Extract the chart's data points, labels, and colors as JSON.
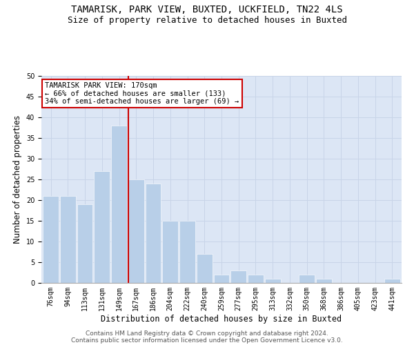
{
  "title1": "TAMARISK, PARK VIEW, BUXTED, UCKFIELD, TN22 4LS",
  "title2": "Size of property relative to detached houses in Buxted",
  "xlabel": "Distribution of detached houses by size in Buxted",
  "ylabel": "Number of detached properties",
  "categories": [
    "76sqm",
    "94sqm",
    "113sqm",
    "131sqm",
    "149sqm",
    "167sqm",
    "186sqm",
    "204sqm",
    "222sqm",
    "240sqm",
    "259sqm",
    "277sqm",
    "295sqm",
    "313sqm",
    "332sqm",
    "350sqm",
    "368sqm",
    "386sqm",
    "405sqm",
    "423sqm",
    "441sqm"
  ],
  "values": [
    21,
    21,
    19,
    27,
    38,
    25,
    24,
    15,
    15,
    7,
    2,
    3,
    2,
    1,
    0,
    2,
    1,
    0,
    0,
    0,
    1
  ],
  "bar_color": "#b8cfe8",
  "highlight_color": "#cc0000",
  "annotation_line1": "TAMARISK PARK VIEW: 170sqm",
  "annotation_line2": "← 66% of detached houses are smaller (133)",
  "annotation_line3": "34% of semi-detached houses are larger (69) →",
  "annotation_box_color": "#ffffff",
  "annotation_box_edge": "#cc0000",
  "grid_color": "#c8d4e8",
  "background_color": "#dce6f5",
  "footer1": "Contains HM Land Registry data © Crown copyright and database right 2024.",
  "footer2": "Contains public sector information licensed under the Open Government Licence v3.0.",
  "ylim": [
    0,
    50
  ],
  "yticks": [
    0,
    5,
    10,
    15,
    20,
    25,
    30,
    35,
    40,
    45,
    50
  ],
  "title_fontsize": 10,
  "subtitle_fontsize": 9,
  "axis_label_fontsize": 8.5,
  "tick_fontsize": 7,
  "footer_fontsize": 6.5,
  "annot_fontsize": 7.5
}
